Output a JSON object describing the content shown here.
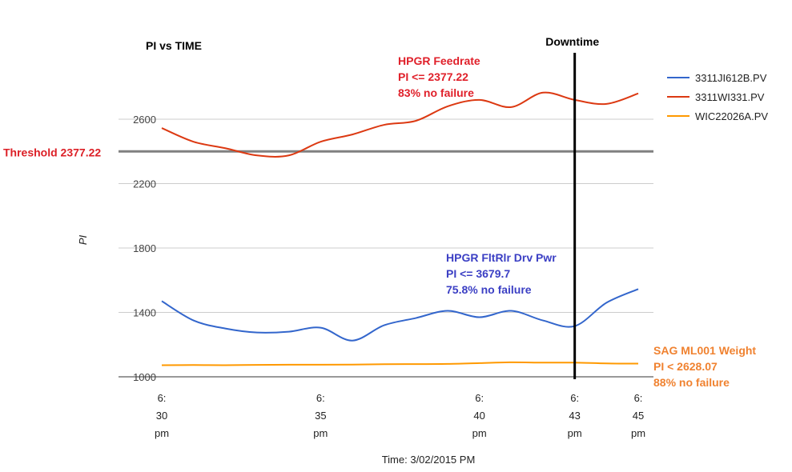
{
  "chart_data": {
    "type": "line",
    "title": "PI vs TIME",
    "xlabel": "Time: 3/02/2015 PM",
    "ylabel": "PI",
    "ylim": [
      1000,
      2800
    ],
    "yticks": [
      "1000",
      "1400",
      "1800",
      "2200",
      "2600"
    ],
    "xlim": [
      0,
      15
    ],
    "xticks": [
      {
        "x": 0,
        "lines": [
          "6:",
          "30",
          "pm"
        ]
      },
      {
        "x": 5,
        "lines": [
          "6:",
          "35",
          "pm"
        ]
      },
      {
        "x": 10,
        "lines": [
          "6:",
          "40",
          "pm"
        ]
      },
      {
        "x": 13,
        "lines": [
          "6:",
          "43",
          "pm"
        ]
      },
      {
        "x": 15,
        "lines": [
          "6:",
          "45",
          "pm"
        ]
      }
    ],
    "grid": true,
    "legend_position": "right",
    "series": [
      {
        "name": "3311JI612B.PV",
        "color": "#3366cc",
        "x": [
          0,
          1,
          2,
          3,
          4,
          5,
          6,
          7,
          8,
          9,
          10,
          11,
          12,
          13,
          14,
          15
        ],
        "values": [
          1470,
          1350,
          1300,
          1275,
          1280,
          1305,
          1225,
          1320,
          1365,
          1410,
          1370,
          1410,
          1350,
          1315,
          1460,
          1545
        ]
      },
      {
        "name": "3311WI331.PV",
        "color": "#dc3912",
        "x": [
          0,
          1,
          2,
          3,
          4,
          5,
          6,
          7,
          8,
          9,
          10,
          11,
          12,
          13,
          14,
          15
        ],
        "values": [
          2545,
          2460,
          2420,
          2375,
          2375,
          2460,
          2505,
          2565,
          2590,
          2680,
          2720,
          2675,
          2765,
          2720,
          2695,
          2760
        ]
      },
      {
        "name": "WIC22026A.PV",
        "color": "#ff9900",
        "x": [
          0,
          1,
          2,
          3,
          4,
          5,
          6,
          7,
          8,
          9,
          10,
          11,
          12,
          13,
          14,
          15
        ],
        "values": [
          1072,
          1073,
          1072,
          1074,
          1075,
          1075,
          1076,
          1078,
          1079,
          1080,
          1085,
          1090,
          1088,
          1088,
          1083,
          1082
        ]
      }
    ],
    "threshold": {
      "value": 2377.22,
      "label": "Threshold 2377.22",
      "color": "#808080",
      "label_color": "#dc1f26"
    },
    "marker": {
      "x": 13,
      "label": "Downtime",
      "color": "#000000"
    },
    "annotations": [
      {
        "lines": [
          "HPGR  Feedrate",
          "PI <= 2377.22",
          "83% no failure"
        ],
        "color": "#e0202a"
      },
      {
        "lines": [
          "HPGR FltRlr Drv Pwr",
          "PI <= 3679.7",
          "75.8% no failure"
        ],
        "color": "#3b3fc4"
      },
      {
        "lines": [
          "SAG ML001 Weight",
          "PI < 2628.07",
          "88% no failure"
        ],
        "color": "#f08230"
      }
    ]
  }
}
